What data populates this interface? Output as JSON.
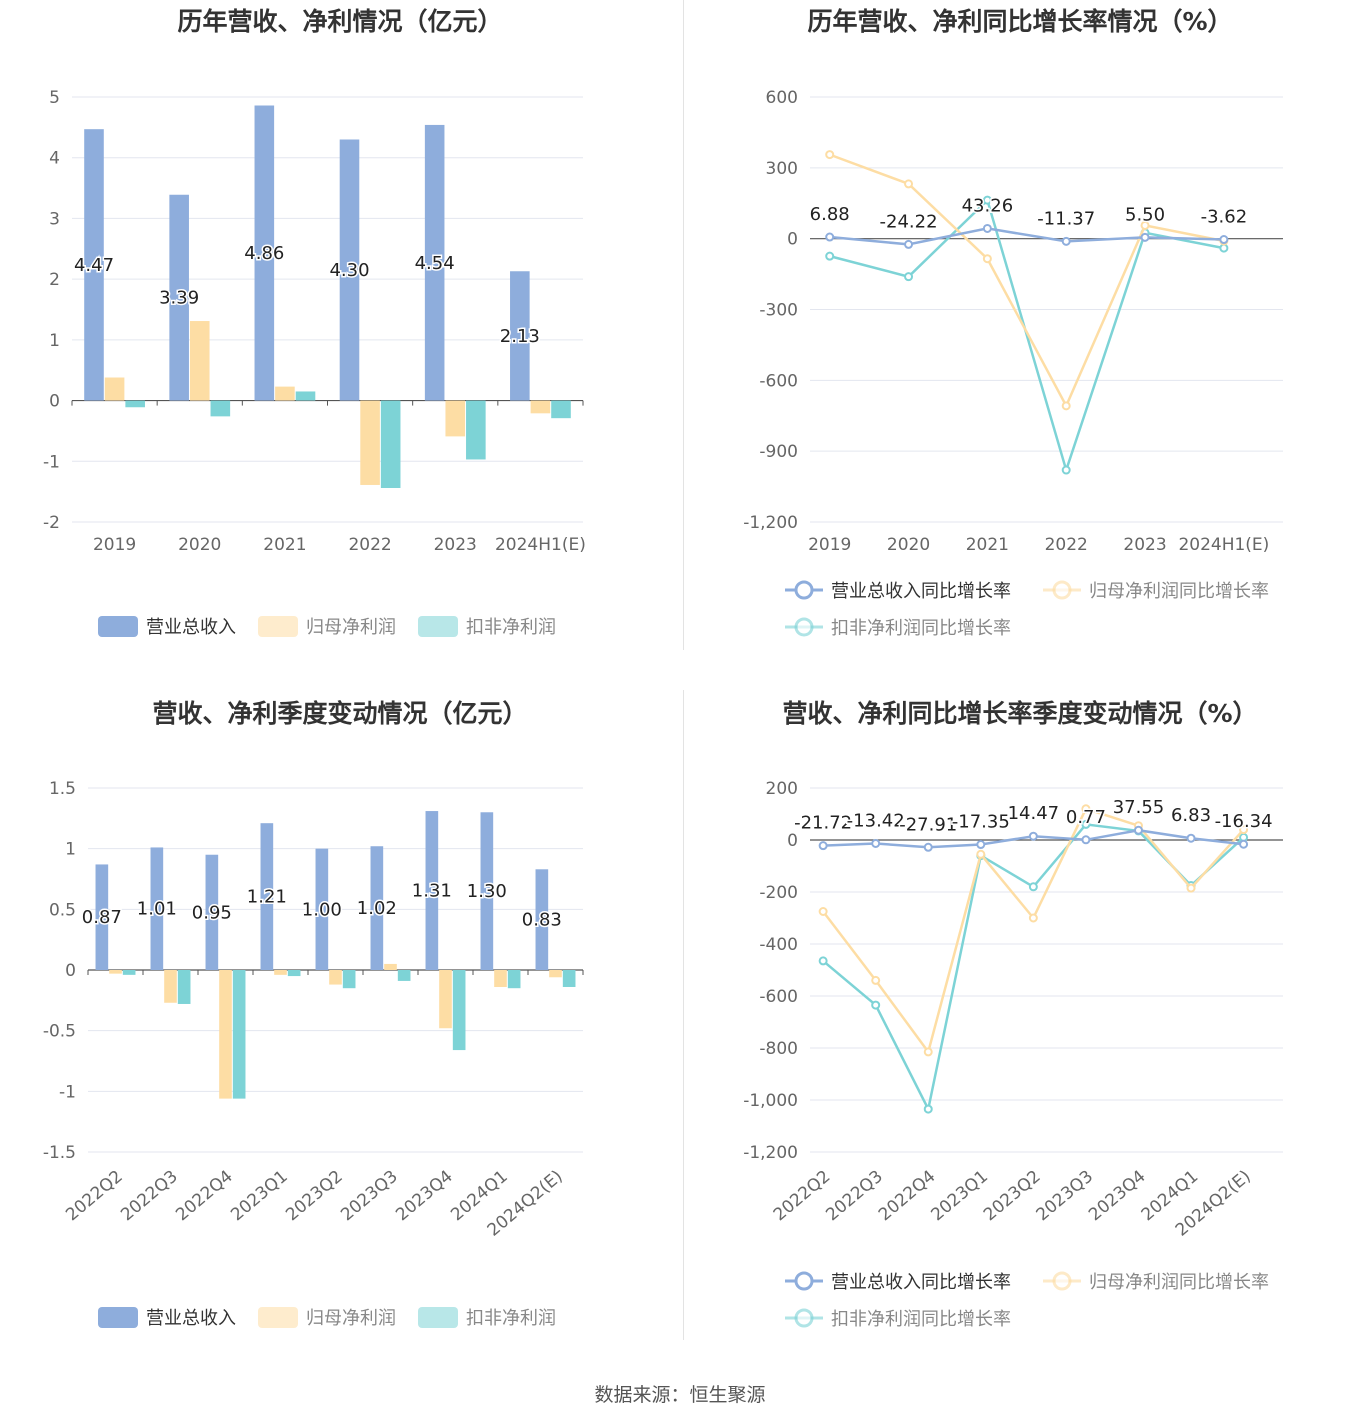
{
  "source_label": "数据来源：恒生聚源",
  "colors": {
    "revenue": "#8eaddc",
    "net": "#fddda4",
    "deduct": "#7dd3d6",
    "grid": "#e3e6ef",
    "axis": "#666666"
  },
  "chart_data": [
    {
      "type": "bar",
      "title": "历年营收、净利情况（亿元）",
      "categories": [
        "2019",
        "2020",
        "2021",
        "2022",
        "2023",
        "2024H1(E)"
      ],
      "series": [
        {
          "name": "营业总收入",
          "values": [
            4.47,
            3.39,
            4.86,
            4.3,
            4.54,
            2.13
          ],
          "labels": [
            "4.47",
            "3.39",
            "4.86",
            "4.30",
            "4.54",
            "2.13"
          ]
        },
        {
          "name": "归母净利润",
          "values": [
            0.38,
            1.31,
            0.23,
            -1.39,
            -0.59,
            -0.21
          ]
        },
        {
          "name": "扣非净利润",
          "values": [
            -0.11,
            -0.26,
            0.15,
            -1.44,
            -0.97,
            -0.29
          ]
        }
      ],
      "ylim": [
        -2,
        5
      ],
      "yticks": [
        "-2",
        "-1",
        "0",
        "1",
        "2",
        "3",
        "4",
        "5"
      ],
      "xlabel": "",
      "ylabel": "",
      "grid": true,
      "legend_position": "bottom"
    },
    {
      "type": "line",
      "title": "历年营收、净利同比增长率情况（%）",
      "categories": [
        "2019",
        "2020",
        "2021",
        "2022",
        "2023",
        "2024H1(E)"
      ],
      "series": [
        {
          "name": "营业总收入同比增长率",
          "values": [
            6.88,
            -24.22,
            43.26,
            -11.37,
            5.5,
            -3.62
          ],
          "labels": [
            "6.88",
            "-24.22",
            "43.26",
            "-11.37",
            "5.50",
            "-3.62"
          ]
        },
        {
          "name": "归母净利润同比增长率",
          "values": [
            356,
            232,
            -85,
            -708,
            56,
            -10
          ]
        },
        {
          "name": "扣非净利润同比增长率",
          "values": [
            -74,
            -161,
            163,
            -980,
            25,
            -40
          ]
        }
      ],
      "ylim": [
        -1200,
        600
      ],
      "yticks": [
        "-1,200",
        "-900",
        "-600",
        "-300",
        "0",
        "300",
        "600"
      ],
      "xlabel": "",
      "ylabel": "",
      "grid": true,
      "legend_position": "bottom"
    },
    {
      "type": "bar",
      "title": "营收、净利季度变动情况（亿元）",
      "categories": [
        "2022Q2",
        "2022Q3",
        "2022Q4",
        "2023Q1",
        "2023Q2",
        "2023Q3",
        "2023Q4",
        "2024Q1",
        "2024Q2(E)"
      ],
      "series": [
        {
          "name": "营业总收入",
          "values": [
            0.87,
            1.01,
            0.95,
            1.21,
            1.0,
            1.02,
            1.31,
            1.3,
            0.83
          ],
          "labels": [
            "0.87",
            "1.01",
            "0.95",
            "1.21",
            "1.00",
            "1.02",
            "1.31",
            "1.30",
            "0.83"
          ]
        },
        {
          "name": "归母净利润",
          "values": [
            -0.03,
            -0.27,
            -1.06,
            -0.04,
            -0.12,
            0.05,
            -0.48,
            -0.14,
            -0.06
          ]
        },
        {
          "name": "扣非净利润",
          "values": [
            -0.04,
            -0.28,
            -1.06,
            -0.05,
            -0.15,
            -0.09,
            -0.66,
            -0.15,
            -0.14
          ]
        }
      ],
      "ylim": [
        -1.5,
        1.5
      ],
      "yticks": [
        "-1.5",
        "-1",
        "-0.5",
        "0",
        "0.5",
        "1",
        "1.5"
      ],
      "xlabel": "",
      "ylabel": "",
      "grid": true,
      "legend_position": "bottom"
    },
    {
      "type": "line",
      "title": "营收、净利同比增长率季度变动情况（%）",
      "categories": [
        "2022Q2",
        "2022Q3",
        "2022Q4",
        "2023Q1",
        "2023Q2",
        "2023Q3",
        "2023Q4",
        "2024Q1",
        "2024Q2(E)"
      ],
      "series": [
        {
          "name": "营业总收入同比增长率",
          "values": [
            -21.72,
            -13.42,
            -27.91,
            -17.35,
            14.47,
            0.77,
            37.55,
            6.83,
            -16.34
          ],
          "labels": [
            "-21.72",
            "-13.42",
            "-27.91",
            "-17.35",
            "14.47",
            "0.77",
            "37.55",
            "6.83",
            "-16.34"
          ]
        },
        {
          "name": "归母净利润同比增长率",
          "values": [
            -275,
            -540,
            -815,
            -55,
            -300,
            120,
            55,
            -185,
            40
          ]
        },
        {
          "name": "扣非净利润同比增长率",
          "values": [
            -465,
            -635,
            -1035,
            -60,
            -180,
            60,
            35,
            -175,
            10
          ]
        }
      ],
      "ylim": [
        -1200,
        200
      ],
      "yticks": [
        "-1,200",
        "-1,000",
        "-800",
        "-600",
        "-400",
        "-200",
        "0",
        "200"
      ],
      "xlabel": "",
      "ylabel": "",
      "grid": true,
      "legend_position": "bottom"
    }
  ]
}
